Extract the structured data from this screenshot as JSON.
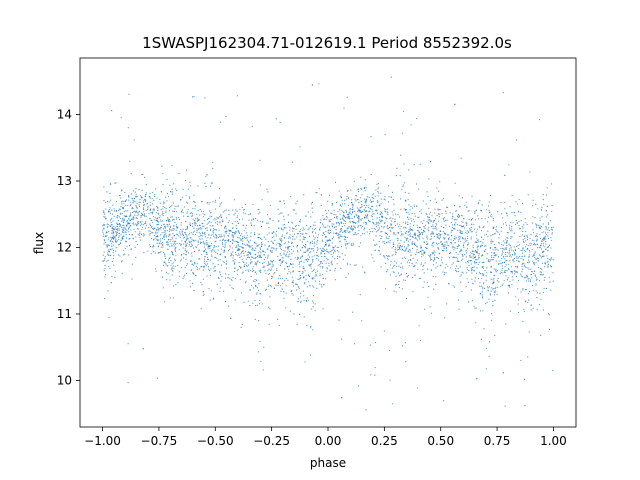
{
  "chart_data": {
    "type": "scatter",
    "title": "1SWASPJ162304.71-012619.1 Period 8552392.0s",
    "xlabel": "phase",
    "ylabel": "flux",
    "xlim": [
      -1.1,
      1.1
    ],
    "ylim": [
      9.3,
      14.85
    ],
    "x_ticks": [
      -1.0,
      -0.75,
      -0.5,
      -0.25,
      0.0,
      0.25,
      0.5,
      0.75,
      1.0
    ],
    "x_tick_labels": [
      "−1.00",
      "−0.75",
      "−0.50",
      "−0.25",
      "0.00",
      "0.25",
      "0.50",
      "0.75",
      "1.00"
    ],
    "y_ticks": [
      10,
      11,
      12,
      13,
      14
    ],
    "y_tick_labels": [
      "10",
      "11",
      "12",
      "13",
      "14"
    ],
    "grid": false,
    "legend": "none",
    "marker_color": "#1f77b4",
    "phase_range": [
      -1.0,
      1.0
    ],
    "series": [
      {
        "profile": {
          "phase": [
            -1.0,
            -0.95,
            -0.9,
            -0.85,
            -0.8,
            -0.75,
            -0.7,
            -0.65,
            -0.6,
            -0.55,
            -0.5,
            -0.45,
            -0.4,
            -0.35,
            -0.3,
            -0.25,
            -0.2,
            -0.15,
            -0.1,
            -0.05,
            0.0,
            0.05,
            0.1,
            0.15,
            0.2,
            0.25,
            0.3,
            0.35,
            0.4,
            0.45,
            0.5,
            0.55,
            0.6,
            0.65,
            0.7,
            0.75,
            0.8,
            0.85,
            0.9,
            0.95,
            1.0
          ],
          "mean_flux": [
            12.05,
            12.25,
            12.4,
            12.5,
            12.5,
            12.3,
            12.15,
            12.2,
            12.15,
            12.1,
            12.15,
            12.1,
            12.05,
            11.95,
            11.8,
            11.85,
            11.95,
            11.85,
            11.8,
            11.95,
            12.05,
            12.25,
            12.4,
            12.5,
            12.5,
            12.3,
            12.15,
            12.2,
            12.15,
            12.1,
            12.15,
            12.1,
            12.05,
            11.95,
            11.8,
            11.85,
            11.95,
            11.85,
            11.8,
            11.95,
            12.05
          ],
          "scatter_min": [
            11.0,
            11.4,
            11.5,
            11.6,
            11.6,
            11.4,
            11.1,
            11.2,
            11.2,
            11.1,
            11.0,
            11.1,
            11.0,
            10.9,
            9.9,
            10.6,
            10.6,
            10.7,
            10.2,
            10.6,
            11.0,
            11.4,
            11.5,
            11.6,
            11.6,
            11.4,
            11.1,
            11.2,
            11.2,
            11.1,
            11.0,
            11.1,
            11.0,
            10.9,
            9.9,
            10.6,
            10.6,
            10.7,
            10.2,
            10.6,
            11.0
          ],
          "scatter_max": [
            13.0,
            13.0,
            13.1,
            13.1,
            13.1,
            13.0,
            13.4,
            13.3,
            13.3,
            13.4,
            13.0,
            12.9,
            12.9,
            12.8,
            12.9,
            12.7,
            12.8,
            12.8,
            12.8,
            12.9,
            13.0,
            13.0,
            13.1,
            13.1,
            13.1,
            13.0,
            13.4,
            13.3,
            13.3,
            13.4,
            13.0,
            12.9,
            12.9,
            12.8,
            12.9,
            12.7,
            12.8,
            12.8,
            12.8,
            12.9,
            13.0
          ]
        },
        "outlier_flux_range": [
          9.5,
          14.6
        ]
      }
    ]
  }
}
